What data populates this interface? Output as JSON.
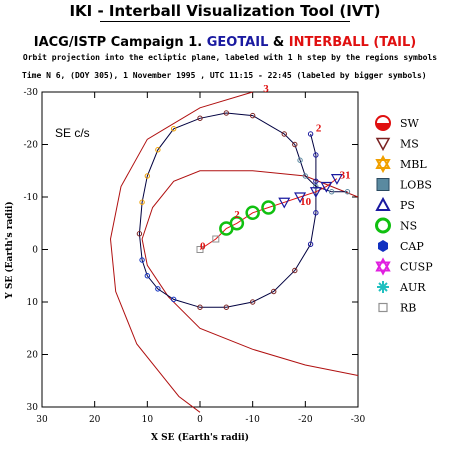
{
  "header": {
    "title": "IKI - Interball Visualization Tool (IVT)",
    "subtitle_campaign": "IACG/ISTP Campaign 1.",
    "subtitle_geotail": "GEOTAIL",
    "subtitle_and": "&",
    "subtitle_interball": "INTERBALL (TAIL)",
    "orbit_note": "Orbit projection into the ecliptic plane, labeled with 1 h step by the regions symbols",
    "time_note": "Time N 6, (DOY 305), 1 November 1995 , UTC 11:15 - 22:45 (labeled by bigger symbols)"
  },
  "colors": {
    "geotail": "#1a1aa0",
    "interball": "#e01010",
    "orbit_line": "#000040"
  },
  "chart_data": {
    "type": "scatter",
    "frame_label": "SE c/s",
    "xlabel": "X SE (Earth's radii)",
    "ylabel": "Y SE (Earth's radii)",
    "xlim": [
      30,
      -30
    ],
    "ylim": [
      30,
      -30
    ],
    "x_ticks": [
      30,
      20,
      10,
      0,
      -10,
      -20,
      -30
    ],
    "y_ticks": [
      -30,
      -20,
      -10,
      0,
      10,
      20,
      30
    ],
    "boundaries": [
      {
        "name": "bow-shock",
        "points": [
          [
            -10,
            -30
          ],
          [
            0,
            -27
          ],
          [
            10,
            -21
          ],
          [
            15,
            -12
          ],
          [
            17,
            -2
          ],
          [
            16,
            8
          ],
          [
            12,
            18
          ],
          [
            4,
            28
          ],
          [
            0,
            31
          ]
        ]
      },
      {
        "name": "magnetopause",
        "points": [
          [
            -30,
            -10
          ],
          [
            -20,
            -14
          ],
          [
            -10,
            -15
          ],
          [
            0,
            -15
          ],
          [
            5,
            -13
          ],
          [
            9,
            -8
          ],
          [
            11,
            -2
          ],
          [
            10,
            3
          ],
          [
            6,
            9
          ],
          [
            0,
            15
          ],
          [
            -10,
            19
          ],
          [
            -20,
            22
          ],
          [
            -30,
            24
          ]
        ]
      }
    ],
    "series": [
      {
        "name": "GEOTAIL",
        "points": [
          [
            -28,
            -11
          ],
          [
            -25,
            -11
          ],
          [
            -22,
            -12
          ],
          [
            -20,
            -14
          ],
          [
            -19,
            -17
          ],
          [
            -18,
            -20
          ],
          [
            -16,
            -22
          ],
          [
            -10,
            -25.5
          ],
          [
            -5,
            -26
          ],
          [
            0,
            -25
          ],
          [
            5,
            -23
          ],
          [
            8,
            -19
          ],
          [
            10,
            -14
          ],
          [
            11,
            -9
          ],
          [
            11.5,
            -3
          ],
          [
            11,
            2
          ],
          [
            10,
            5
          ],
          [
            8,
            7.5
          ],
          [
            5,
            9.5
          ],
          [
            0,
            11
          ],
          [
            -5,
            11
          ],
          [
            -10,
            10
          ],
          [
            -14,
            8
          ],
          [
            -18,
            4
          ],
          [
            -21,
            -1
          ],
          [
            -22,
            -7
          ],
          [
            -22,
            -13
          ],
          [
            -22,
            -18
          ],
          [
            -21,
            -22
          ]
        ]
      },
      {
        "name": "INTERBALL",
        "points": [
          [
            0,
            0
          ],
          [
            -3,
            -2
          ],
          [
            -5,
            -4
          ],
          [
            -7,
            -5
          ],
          [
            -10,
            -7
          ],
          [
            -13,
            -8
          ],
          [
            -16,
            -9
          ],
          [
            -19,
            -10
          ],
          [
            -22,
            -11
          ],
          [
            -24,
            -12
          ],
          [
            -26,
            -13.5
          ]
        ]
      }
    ],
    "point_labels": [
      {
        "text": "0",
        "x": 0,
        "y": 0
      },
      {
        "text": "2",
        "x": -6.5,
        "y": -6
      },
      {
        "text": "2",
        "x": -22,
        "y": -22.5
      },
      {
        "text": "31",
        "x": -26.5,
        "y": -13.5
      },
      {
        "text": "3",
        "x": -12,
        "y": -30
      },
      {
        "text": "10",
        "x": -19,
        "y": -8.5
      }
    ],
    "regions": [
      {
        "code": "SW",
        "color": "#e01010"
      },
      {
        "code": "MS",
        "color": "#7a2222"
      },
      {
        "code": "MBL",
        "color": "#f0a000"
      },
      {
        "code": "LOBS",
        "color": "#5a8aa0"
      },
      {
        "code": "PS",
        "color": "#1a1aa0"
      },
      {
        "code": "NS",
        "color": "#10c010"
      },
      {
        "code": "CAP",
        "color": "#1030c0"
      },
      {
        "code": "CUSP",
        "color": "#e020e0"
      },
      {
        "code": "AUR",
        "color": "#20c0c0"
      },
      {
        "code": "RB",
        "color": "#909090"
      }
    ]
  }
}
